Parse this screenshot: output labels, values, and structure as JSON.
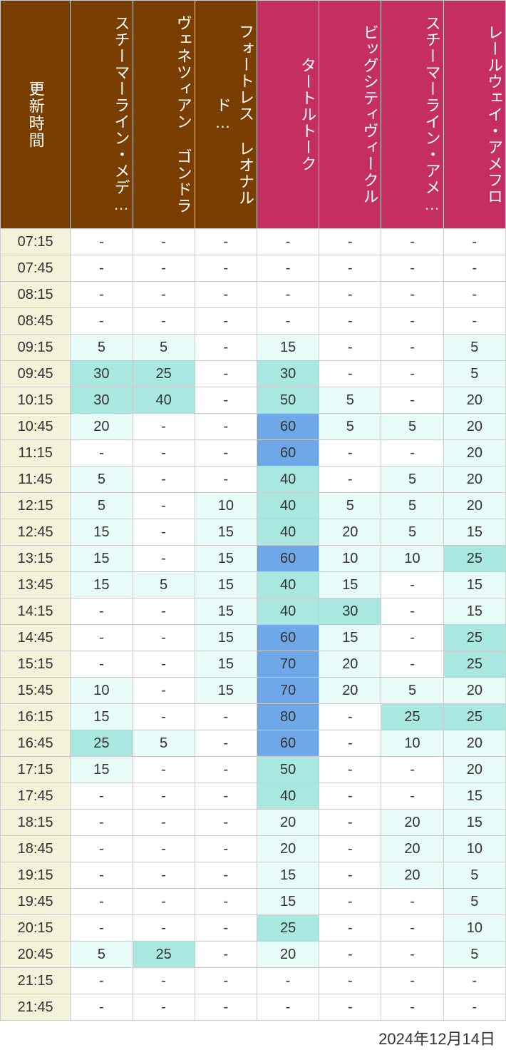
{
  "timeHeader": "更新時間",
  "footerDate": "2024年12月14日",
  "columns": [
    {
      "label": "スチーマーライン・メデ…",
      "headerColor": "brown"
    },
    {
      "label": "ヴェネツィアン ゴンドラ",
      "headerColor": "brown"
    },
    {
      "label": "フォートレス レオナルド…",
      "headerColor": "brown"
    },
    {
      "label": "タートルトーク",
      "headerColor": "pink"
    },
    {
      "label": "ビッグシティヴィークル",
      "headerColor": "pink"
    },
    {
      "label": "スチーマーライン・アメ…",
      "headerColor": "pink"
    },
    {
      "label": "レールウェイ・アメフロ",
      "headerColor": "pink"
    }
  ],
  "colorScale": {
    "empty": "#ffffff",
    "level1": "#e8fcfa",
    "level2": "#a8e8e0",
    "level3": "#6fa8e8"
  },
  "headerColors": {
    "brown": "#7a3e00",
    "pink": "#c42e61"
  },
  "timeCellBg": "#f4f2d8",
  "times": [
    "07:15",
    "07:45",
    "08:15",
    "08:45",
    "09:15",
    "09:45",
    "10:15",
    "10:45",
    "11:15",
    "11:45",
    "12:15",
    "12:45",
    "13:15",
    "13:45",
    "14:15",
    "14:45",
    "15:15",
    "15:45",
    "16:15",
    "16:45",
    "17:15",
    "17:45",
    "18:15",
    "18:45",
    "19:15",
    "19:45",
    "20:15",
    "20:45",
    "21:15",
    "21:45"
  ],
  "rows": [
    [
      {
        "v": "-",
        "c": 0
      },
      {
        "v": "-",
        "c": 0
      },
      {
        "v": "-",
        "c": 0
      },
      {
        "v": "-",
        "c": 0
      },
      {
        "v": "-",
        "c": 0
      },
      {
        "v": "-",
        "c": 0
      },
      {
        "v": "-",
        "c": 0
      }
    ],
    [
      {
        "v": "-",
        "c": 0
      },
      {
        "v": "-",
        "c": 0
      },
      {
        "v": "-",
        "c": 0
      },
      {
        "v": "-",
        "c": 0
      },
      {
        "v": "-",
        "c": 0
      },
      {
        "v": "-",
        "c": 0
      },
      {
        "v": "-",
        "c": 0
      }
    ],
    [
      {
        "v": "-",
        "c": 0
      },
      {
        "v": "-",
        "c": 0
      },
      {
        "v": "-",
        "c": 0
      },
      {
        "v": "-",
        "c": 0
      },
      {
        "v": "-",
        "c": 0
      },
      {
        "v": "-",
        "c": 0
      },
      {
        "v": "-",
        "c": 0
      }
    ],
    [
      {
        "v": "-",
        "c": 0
      },
      {
        "v": "-",
        "c": 0
      },
      {
        "v": "-",
        "c": 0
      },
      {
        "v": "-",
        "c": 0
      },
      {
        "v": "-",
        "c": 0
      },
      {
        "v": "-",
        "c": 0
      },
      {
        "v": "-",
        "c": 0
      }
    ],
    [
      {
        "v": "5",
        "c": 1
      },
      {
        "v": "5",
        "c": 1
      },
      {
        "v": "-",
        "c": 0
      },
      {
        "v": "15",
        "c": 1
      },
      {
        "v": "-",
        "c": 0
      },
      {
        "v": "-",
        "c": 0
      },
      {
        "v": "5",
        "c": 1
      }
    ],
    [
      {
        "v": "30",
        "c": 2
      },
      {
        "v": "25",
        "c": 2
      },
      {
        "v": "-",
        "c": 0
      },
      {
        "v": "30",
        "c": 2
      },
      {
        "v": "-",
        "c": 0
      },
      {
        "v": "-",
        "c": 0
      },
      {
        "v": "5",
        "c": 1
      }
    ],
    [
      {
        "v": "30",
        "c": 2
      },
      {
        "v": "40",
        "c": 2
      },
      {
        "v": "-",
        "c": 0
      },
      {
        "v": "50",
        "c": 2
      },
      {
        "v": "5",
        "c": 1
      },
      {
        "v": "-",
        "c": 0
      },
      {
        "v": "20",
        "c": 1
      }
    ],
    [
      {
        "v": "20",
        "c": 1
      },
      {
        "v": "-",
        "c": 0
      },
      {
        "v": "-",
        "c": 0
      },
      {
        "v": "60",
        "c": 3
      },
      {
        "v": "5",
        "c": 1
      },
      {
        "v": "5",
        "c": 1
      },
      {
        "v": "20",
        "c": 1
      }
    ],
    [
      {
        "v": "-",
        "c": 0
      },
      {
        "v": "-",
        "c": 0
      },
      {
        "v": "-",
        "c": 0
      },
      {
        "v": "60",
        "c": 3
      },
      {
        "v": "-",
        "c": 0
      },
      {
        "v": "-",
        "c": 0
      },
      {
        "v": "20",
        "c": 1
      }
    ],
    [
      {
        "v": "5",
        "c": 1
      },
      {
        "v": "-",
        "c": 0
      },
      {
        "v": "-",
        "c": 0
      },
      {
        "v": "40",
        "c": 2
      },
      {
        "v": "-",
        "c": 0
      },
      {
        "v": "5",
        "c": 1
      },
      {
        "v": "20",
        "c": 1
      }
    ],
    [
      {
        "v": "5",
        "c": 1
      },
      {
        "v": "-",
        "c": 0
      },
      {
        "v": "10",
        "c": 1
      },
      {
        "v": "40",
        "c": 2
      },
      {
        "v": "5",
        "c": 1
      },
      {
        "v": "5",
        "c": 1
      },
      {
        "v": "20",
        "c": 1
      }
    ],
    [
      {
        "v": "15",
        "c": 1
      },
      {
        "v": "-",
        "c": 0
      },
      {
        "v": "15",
        "c": 1
      },
      {
        "v": "40",
        "c": 2
      },
      {
        "v": "20",
        "c": 1
      },
      {
        "v": "5",
        "c": 1
      },
      {
        "v": "15",
        "c": 1
      }
    ],
    [
      {
        "v": "15",
        "c": 1
      },
      {
        "v": "-",
        "c": 0
      },
      {
        "v": "15",
        "c": 1
      },
      {
        "v": "60",
        "c": 3
      },
      {
        "v": "10",
        "c": 1
      },
      {
        "v": "10",
        "c": 1
      },
      {
        "v": "25",
        "c": 2
      }
    ],
    [
      {
        "v": "15",
        "c": 1
      },
      {
        "v": "5",
        "c": 1
      },
      {
        "v": "15",
        "c": 1
      },
      {
        "v": "40",
        "c": 2
      },
      {
        "v": "15",
        "c": 1
      },
      {
        "v": "-",
        "c": 0
      },
      {
        "v": "15",
        "c": 1
      }
    ],
    [
      {
        "v": "-",
        "c": 0
      },
      {
        "v": "-",
        "c": 0
      },
      {
        "v": "15",
        "c": 1
      },
      {
        "v": "40",
        "c": 2
      },
      {
        "v": "30",
        "c": 2
      },
      {
        "v": "-",
        "c": 0
      },
      {
        "v": "15",
        "c": 1
      }
    ],
    [
      {
        "v": "-",
        "c": 0
      },
      {
        "v": "-",
        "c": 0
      },
      {
        "v": "15",
        "c": 1
      },
      {
        "v": "60",
        "c": 3
      },
      {
        "v": "15",
        "c": 1
      },
      {
        "v": "-",
        "c": 0
      },
      {
        "v": "25",
        "c": 2
      }
    ],
    [
      {
        "v": "-",
        "c": 0
      },
      {
        "v": "-",
        "c": 0
      },
      {
        "v": "15",
        "c": 1
      },
      {
        "v": "70",
        "c": 3
      },
      {
        "v": "20",
        "c": 1
      },
      {
        "v": "-",
        "c": 0
      },
      {
        "v": "25",
        "c": 2
      }
    ],
    [
      {
        "v": "10",
        "c": 1
      },
      {
        "v": "-",
        "c": 0
      },
      {
        "v": "15",
        "c": 1
      },
      {
        "v": "70",
        "c": 3
      },
      {
        "v": "20",
        "c": 1
      },
      {
        "v": "5",
        "c": 1
      },
      {
        "v": "20",
        "c": 1
      }
    ],
    [
      {
        "v": "15",
        "c": 1
      },
      {
        "v": "-",
        "c": 0
      },
      {
        "v": "-",
        "c": 0
      },
      {
        "v": "80",
        "c": 3
      },
      {
        "v": "-",
        "c": 0
      },
      {
        "v": "25",
        "c": 2
      },
      {
        "v": "25",
        "c": 2
      }
    ],
    [
      {
        "v": "25",
        "c": 2
      },
      {
        "v": "5",
        "c": 1
      },
      {
        "v": "-",
        "c": 0
      },
      {
        "v": "60",
        "c": 3
      },
      {
        "v": "-",
        "c": 0
      },
      {
        "v": "10",
        "c": 1
      },
      {
        "v": "20",
        "c": 1
      }
    ],
    [
      {
        "v": "15",
        "c": 1
      },
      {
        "v": "-",
        "c": 0
      },
      {
        "v": "-",
        "c": 0
      },
      {
        "v": "50",
        "c": 2
      },
      {
        "v": "-",
        "c": 0
      },
      {
        "v": "-",
        "c": 0
      },
      {
        "v": "20",
        "c": 1
      }
    ],
    [
      {
        "v": "-",
        "c": 0
      },
      {
        "v": "-",
        "c": 0
      },
      {
        "v": "-",
        "c": 0
      },
      {
        "v": "40",
        "c": 2
      },
      {
        "v": "-",
        "c": 0
      },
      {
        "v": "-",
        "c": 0
      },
      {
        "v": "15",
        "c": 1
      }
    ],
    [
      {
        "v": "-",
        "c": 0
      },
      {
        "v": "-",
        "c": 0
      },
      {
        "v": "-",
        "c": 0
      },
      {
        "v": "20",
        "c": 1
      },
      {
        "v": "-",
        "c": 0
      },
      {
        "v": "20",
        "c": 1
      },
      {
        "v": "15",
        "c": 1
      }
    ],
    [
      {
        "v": "-",
        "c": 0
      },
      {
        "v": "-",
        "c": 0
      },
      {
        "v": "-",
        "c": 0
      },
      {
        "v": "20",
        "c": 1
      },
      {
        "v": "-",
        "c": 0
      },
      {
        "v": "20",
        "c": 1
      },
      {
        "v": "10",
        "c": 1
      }
    ],
    [
      {
        "v": "-",
        "c": 0
      },
      {
        "v": "-",
        "c": 0
      },
      {
        "v": "-",
        "c": 0
      },
      {
        "v": "15",
        "c": 1
      },
      {
        "v": "-",
        "c": 0
      },
      {
        "v": "20",
        "c": 1
      },
      {
        "v": "5",
        "c": 1
      }
    ],
    [
      {
        "v": "-",
        "c": 0
      },
      {
        "v": "-",
        "c": 0
      },
      {
        "v": "-",
        "c": 0
      },
      {
        "v": "15",
        "c": 1
      },
      {
        "v": "-",
        "c": 0
      },
      {
        "v": "-",
        "c": 0
      },
      {
        "v": "5",
        "c": 1
      }
    ],
    [
      {
        "v": "-",
        "c": 0
      },
      {
        "v": "-",
        "c": 0
      },
      {
        "v": "-",
        "c": 0
      },
      {
        "v": "25",
        "c": 2
      },
      {
        "v": "-",
        "c": 0
      },
      {
        "v": "-",
        "c": 0
      },
      {
        "v": "10",
        "c": 1
      }
    ],
    [
      {
        "v": "5",
        "c": 1
      },
      {
        "v": "25",
        "c": 2
      },
      {
        "v": "-",
        "c": 0
      },
      {
        "v": "20",
        "c": 1
      },
      {
        "v": "-",
        "c": 0
      },
      {
        "v": "-",
        "c": 0
      },
      {
        "v": "5",
        "c": 1
      }
    ],
    [
      {
        "v": "-",
        "c": 0
      },
      {
        "v": "-",
        "c": 0
      },
      {
        "v": "-",
        "c": 0
      },
      {
        "v": "-",
        "c": 0
      },
      {
        "v": "-",
        "c": 0
      },
      {
        "v": "-",
        "c": 0
      },
      {
        "v": "-",
        "c": 0
      }
    ],
    [
      {
        "v": "-",
        "c": 0
      },
      {
        "v": "-",
        "c": 0
      },
      {
        "v": "-",
        "c": 0
      },
      {
        "v": "-",
        "c": 0
      },
      {
        "v": "-",
        "c": 0
      },
      {
        "v": "-",
        "c": 0
      },
      {
        "v": "-",
        "c": 0
      }
    ]
  ]
}
